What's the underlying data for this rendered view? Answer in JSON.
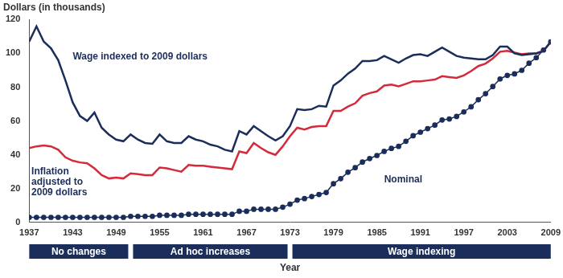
{
  "chart_data": {
    "type": "line",
    "title": "Dollars (in thousands)",
    "x_label": "Year",
    "x": [
      1937,
      1938,
      1939,
      1940,
      1941,
      1942,
      1943,
      1944,
      1945,
      1946,
      1947,
      1948,
      1949,
      1950,
      1951,
      1952,
      1953,
      1954,
      1955,
      1956,
      1957,
      1958,
      1959,
      1960,
      1961,
      1962,
      1963,
      1964,
      1965,
      1966,
      1967,
      1968,
      1969,
      1970,
      1971,
      1972,
      1973,
      1974,
      1975,
      1976,
      1977,
      1978,
      1979,
      1980,
      1981,
      1982,
      1983,
      1984,
      1985,
      1986,
      1987,
      1988,
      1989,
      1990,
      1991,
      1992,
      1993,
      1994,
      1995,
      1996,
      1997,
      1998,
      1999,
      2000,
      2001,
      2002,
      2003,
      2004,
      2005,
      2006,
      2007,
      2008,
      2009
    ],
    "series": [
      {
        "name": "Wage indexed to 2009 dollars",
        "color": "#1b2d5a",
        "marker": "none",
        "line_style": "solid",
        "values": [
          107,
          116,
          107,
          103,
          96,
          84,
          71,
          63,
          60,
          65,
          56,
          52,
          49,
          48,
          52,
          49,
          47,
          46.5,
          52,
          48,
          47,
          47,
          51,
          49,
          48,
          46,
          45,
          43,
          42,
          54,
          52,
          57,
          54,
          51,
          48.5,
          51,
          57,
          67,
          66.5,
          67,
          69,
          68.5,
          81,
          84,
          88,
          91,
          95.5,
          95.5,
          96,
          98.5,
          96.5,
          94.5,
          97,
          99,
          99.5,
          98.5,
          101,
          103.5,
          101,
          98.5,
          97.5,
          97,
          96.5,
          96.5,
          99,
          104,
          104,
          100,
          99,
          99.5,
          100,
          101.5,
          106.8
        ]
      },
      {
        "name": "Inflation adjusted to 2009 dollars",
        "color": "#d42a3c",
        "marker": "none",
        "line_style": "solid",
        "values": [
          44,
          45,
          45.5,
          45,
          43,
          38.5,
          36.5,
          35.5,
          35,
          32,
          28,
          26,
          26.5,
          26,
          29,
          28.5,
          28,
          28,
          32.5,
          32,
          31,
          30,
          34,
          33.5,
          33.5,
          33,
          32.5,
          32,
          31.5,
          42,
          41,
          47,
          44,
          41.5,
          40,
          45,
          51,
          56,
          55,
          56.5,
          57,
          57,
          66,
          66,
          68.5,
          70.5,
          75,
          76.5,
          77.5,
          81,
          81.5,
          80.5,
          82,
          83.5,
          83.5,
          84,
          84.5,
          86.5,
          86,
          85.5,
          87,
          89.5,
          92.5,
          94,
          97,
          101,
          101.5,
          100.5,
          99.5,
          100,
          100,
          101.5,
          106.8
        ]
      },
      {
        "name": "Nominal",
        "color": "#1b2d5a",
        "marker": "circle",
        "line_style": "dotted",
        "values": [
          3,
          3,
          3,
          3,
          3,
          3,
          3,
          3,
          3,
          3,
          3,
          3,
          3,
          3,
          3.6,
          3.6,
          3.6,
          3.6,
          4.2,
          4.2,
          4.2,
          4.2,
          4.8,
          4.8,
          4.8,
          4.8,
          4.8,
          4.8,
          4.8,
          6.6,
          6.6,
          7.8,
          7.8,
          7.8,
          7.8,
          9,
          10.8,
          13.2,
          14.1,
          15.3,
          16.5,
          17.7,
          22.9,
          25.9,
          29.7,
          32.4,
          35.7,
          37.8,
          39.6,
          42,
          43.8,
          45,
          48,
          51.3,
          53.4,
          55.5,
          57.6,
          60.6,
          61.2,
          62.7,
          65.4,
          68.4,
          72.6,
          76.2,
          80.4,
          84.9,
          87,
          87.9,
          90,
          94.2,
          97.5,
          102,
          106.8
        ]
      }
    ],
    "periods": [
      {
        "label": "No changes",
        "start": 1937,
        "end": 1951
      },
      {
        "label": "Ad hoc increases",
        "start": 1951,
        "end": 1973
      },
      {
        "label": "Wage indexing",
        "start": 1973,
        "end": 2009
      }
    ],
    "xlim": [
      1937,
      2009
    ],
    "xticks": [
      1937,
      1943,
      1949,
      1955,
      1961,
      1967,
      1973,
      1979,
      1985,
      1991,
      1997,
      2003,
      2009
    ],
    "ylim": [
      0,
      120
    ],
    "yticks": [
      0,
      20,
      40,
      60,
      80,
      100,
      120
    ],
    "grid": false,
    "legend": "none"
  }
}
